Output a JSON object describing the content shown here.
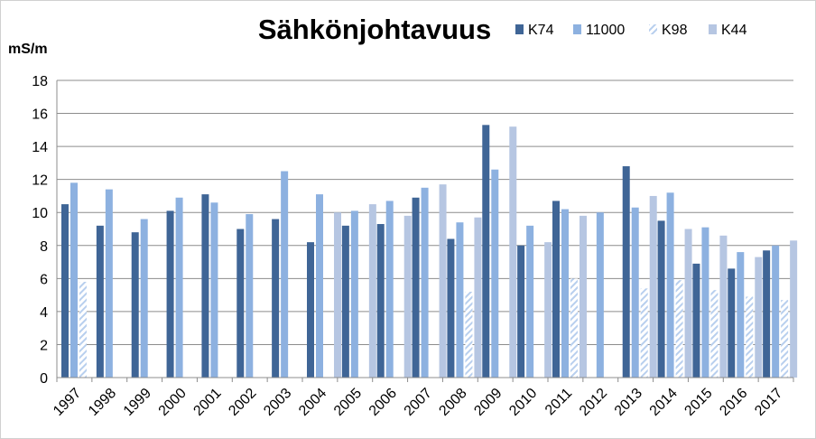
{
  "chart_data": {
    "type": "bar",
    "title": "Sähkönjohtavuus",
    "ylabel": "mS/m",
    "xlabel": "",
    "ylim": [
      0,
      18
    ],
    "ytick_step": 2,
    "yticks": [
      "0",
      "2",
      "4",
      "6",
      "8",
      "10",
      "12",
      "14",
      "16",
      "18"
    ],
    "grid": true,
    "legend_position": "top-right",
    "categories": [
      "1997",
      "1998",
      "1999",
      "2000",
      "2001",
      "2002",
      "2003",
      "2004",
      "2005",
      "2006",
      "2007",
      "2008",
      "2009",
      "2010",
      "2011",
      "2012",
      "2013",
      "2014",
      "2015",
      "2016",
      "2017"
    ],
    "series": [
      {
        "name": "K74",
        "color": "#3f6596",
        "pattern": "solid",
        "values": [
          10.5,
          9.2,
          8.8,
          10.1,
          11.1,
          9.0,
          9.6,
          8.2,
          9.2,
          9.3,
          10.9,
          8.4,
          15.3,
          8.0,
          10.7,
          null,
          12.8,
          9.5,
          6.9,
          6.6,
          7.7
        ]
      },
      {
        "name": "11000",
        "color": "#8db1e0",
        "pattern": "solid",
        "values": [
          11.8,
          11.4,
          9.6,
          10.9,
          10.6,
          9.9,
          12.5,
          11.1,
          10.1,
          10.7,
          11.5,
          9.4,
          12.6,
          9.2,
          10.2,
          10.0,
          10.3,
          11.2,
          9.1,
          7.6,
          8.0
        ]
      },
      {
        "name": "K98",
        "color": "#b8cfee",
        "pattern": "hatched",
        "values": [
          5.8,
          null,
          null,
          null,
          null,
          null,
          null,
          null,
          null,
          null,
          null,
          5.2,
          null,
          null,
          6.0,
          null,
          5.4,
          5.9,
          5.3,
          4.9,
          4.7
        ]
      },
      {
        "name": "K44",
        "color": "#b6c6e2",
        "pattern": "solid",
        "values": [
          null,
          null,
          null,
          null,
          null,
          null,
          null,
          10.0,
          10.5,
          9.8,
          11.7,
          9.7,
          15.2,
          8.2,
          9.8,
          null,
          11.0,
          9.0,
          8.6,
          7.3,
          8.3
        ]
      }
    ]
  }
}
